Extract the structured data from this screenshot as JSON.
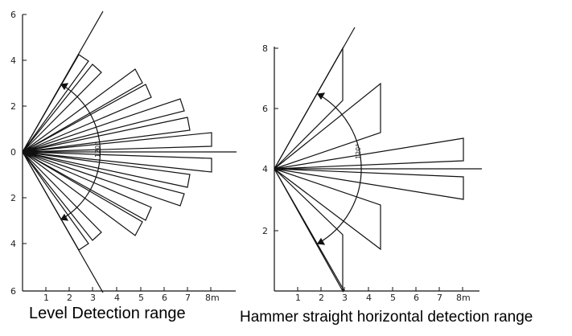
{
  "left_diagram": {
    "caption": "Level Detection range",
    "y_ticks": [
      "6",
      "4",
      "2",
      "0",
      "2",
      "4",
      "6"
    ],
    "x_ticks": [
      "1",
      "2",
      "3",
      "4",
      "5",
      "6",
      "7",
      "8m"
    ],
    "angle_label": "120°"
  },
  "right_diagram": {
    "caption": "Hammer straight horizontal detection range",
    "y_ticks": [
      "8",
      "6",
      "4",
      "2"
    ],
    "x_ticks": [
      "1",
      "2",
      "3",
      "4",
      "5",
      "6",
      "7",
      "8m"
    ],
    "angle_label": "120°"
  }
}
